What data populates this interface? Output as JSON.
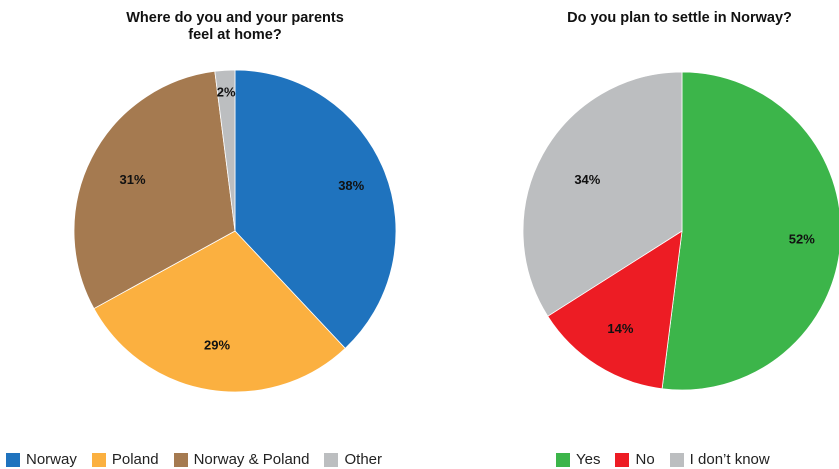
{
  "chart_data": [
    {
      "type": "pie",
      "title": "Where do you and your parents feel at home?",
      "categories": [
        "Norway",
        "Poland",
        "Norway & Poland",
        "Other"
      ],
      "values": [
        38,
        29,
        31,
        2
      ],
      "labels": [
        "38%",
        "29%",
        "31%",
        "2%"
      ],
      "colors": [
        "#1f73be",
        "#fbb040",
        "#a57a50",
        "#bcbec0"
      ],
      "legend_position": "bottom"
    },
    {
      "type": "pie",
      "title": "Do you plan to settle in Norway?",
      "categories": [
        "Yes",
        "No",
        "I don’t know"
      ],
      "values": [
        52,
        14,
        34
      ],
      "labels": [
        "52%",
        "14%",
        "34%"
      ],
      "colors": [
        "#3cb54a",
        "#ed1c24",
        "#bcbec0"
      ],
      "legend_position": "bottom"
    }
  ]
}
